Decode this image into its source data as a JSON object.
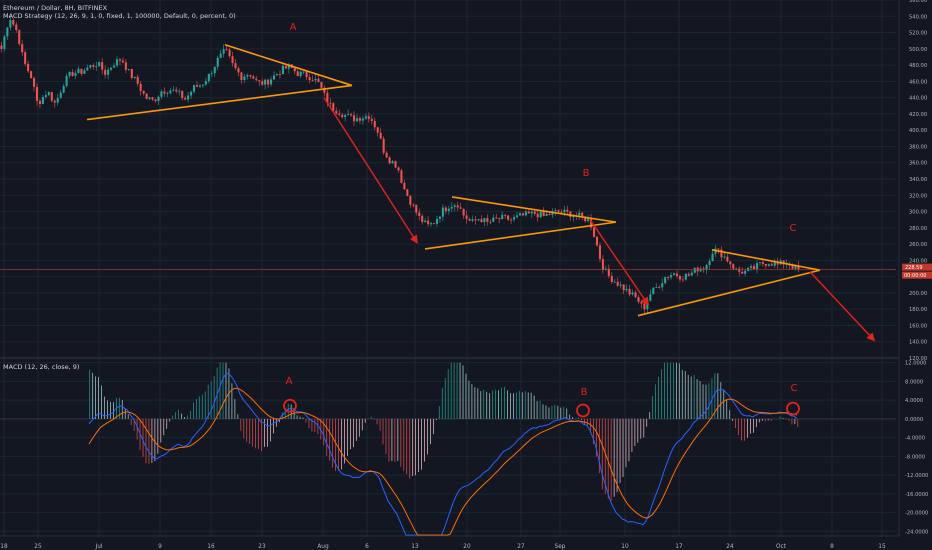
{
  "header": {
    "symbol_line": "Ethereum / Dollar, 8H, BITFINEX",
    "strategy_line": "MACD Strategy (12, 26, 9, 1, 0, fixed, 1, 100000, Default, 0, percent, 0)",
    "macd_line": "MACD (12, 26, close, 9)"
  },
  "colors": {
    "background": "#131722",
    "bull": "#26a69a",
    "bear": "#ef5350",
    "triangle": "#ff9800",
    "arrow": "#e0241c",
    "macd_line": "#2962ff",
    "signal_line": "#ff6d00",
    "current_price_line": "#c0392b"
  },
  "annotations": {
    "price_labels": [
      "A",
      "B",
      "C"
    ],
    "macd_labels": [
      "A",
      "B",
      "C"
    ]
  },
  "price_badges": [
    "228.59",
    "00:00:00"
  ],
  "chart_data": [
    {
      "type": "candlestick",
      "title": "Ethereum / Dollar, 8H, BITFINEX",
      "x_ticks": [
        "18",
        "25",
        "Jul",
        "9",
        "16",
        "23",
        "Aug",
        "6",
        "13",
        "20",
        "27",
        "Sep",
        "10",
        "17",
        "24",
        "Oct",
        "8",
        "15"
      ],
      "y_ticks": [
        560,
        540,
        520,
        500,
        480,
        460,
        440,
        420,
        400,
        380,
        360,
        340,
        320,
        300,
        280,
        260,
        240,
        220,
        200,
        180,
        160,
        140,
        120
      ],
      "ylim": [
        120,
        560
      ],
      "current_price": 228.59,
      "path_anchors": [
        [
          0,
          500
        ],
        [
          8,
          540
        ],
        [
          16,
          520
        ],
        [
          22,
          485
        ],
        [
          30,
          465
        ],
        [
          36,
          432
        ],
        [
          46,
          448
        ],
        [
          54,
          432
        ],
        [
          62,
          458
        ],
        [
          70,
          470
        ],
        [
          80,
          472
        ],
        [
          88,
          478
        ],
        [
          96,
          482
        ],
        [
          104,
          470
        ],
        [
          112,
          482
        ],
        [
          120,
          488
        ],
        [
          128,
          470
        ],
        [
          136,
          458
        ],
        [
          144,
          440
        ],
        [
          152,
          436
        ],
        [
          160,
          448
        ],
        [
          168,
          450
        ],
        [
          176,
          446
        ],
        [
          184,
          438
        ],
        [
          192,
          452
        ],
        [
          200,
          456
        ],
        [
          208,
          468
        ],
        [
          216,
          486
        ],
        [
          224,
          498
        ],
        [
          232,
          478
        ],
        [
          240,
          466
        ],
        [
          248,
          470
        ],
        [
          256,
          458
        ],
        [
          264,
          458
        ],
        [
          272,
          466
        ],
        [
          280,
          474
        ],
        [
          288,
          478
        ],
        [
          296,
          470
        ],
        [
          304,
          468
        ],
        [
          312,
          464
        ],
        [
          318,
          456
        ],
        [
          324,
          440
        ],
        [
          330,
          428
        ],
        [
          336,
          424
        ],
        [
          344,
          418
        ],
        [
          352,
          414
        ],
        [
          360,
          416
        ],
        [
          368,
          418
        ],
        [
          376,
          400
        ],
        [
          382,
          376
        ],
        [
          388,
          364
        ],
        [
          396,
          356
        ],
        [
          402,
          330
        ],
        [
          410,
          310
        ],
        [
          418,
          292
        ],
        [
          426,
          282
        ],
        [
          432,
          286
        ],
        [
          440,
          300
        ],
        [
          448,
          308
        ],
        [
          456,
          310
        ],
        [
          462,
          296
        ],
        [
          470,
          286
        ],
        [
          478,
          292
        ],
        [
          486,
          286
        ],
        [
          494,
          290
        ],
        [
          502,
          292
        ],
        [
          510,
          290
        ],
        [
          518,
          294
        ],
        [
          526,
          296
        ],
        [
          534,
          298
        ],
        [
          542,
          294
        ],
        [
          550,
          298
        ],
        [
          558,
          300
        ],
        [
          566,
          298
        ],
        [
          574,
          296
        ],
        [
          582,
          292
        ],
        [
          588,
          290
        ],
        [
          594,
          266
        ],
        [
          600,
          236
        ],
        [
          606,
          222
        ],
        [
          612,
          216
        ],
        [
          620,
          208
        ],
        [
          628,
          200
        ],
        [
          636,
          192
        ],
        [
          642,
          180
        ],
        [
          648,
          198
        ],
        [
          656,
          208
        ],
        [
          664,
          220
        ],
        [
          672,
          224
        ],
        [
          680,
          220
        ],
        [
          688,
          222
        ],
        [
          696,
          230
        ],
        [
          704,
          232
        ],
        [
          712,
          254
        ],
        [
          720,
          248
        ],
        [
          728,
          238
        ],
        [
          736,
          226
        ],
        [
          744,
          226
        ],
        [
          752,
          230
        ],
        [
          760,
          236
        ],
        [
          768,
          238
        ],
        [
          776,
          234
        ],
        [
          784,
          238
        ],
        [
          790,
          234
        ],
        [
          796,
          228
        ],
        [
          800,
          228
        ]
      ],
      "patterns": [
        {
          "label": "A",
          "apex_price": 455,
          "upper_start": 505,
          "lower_start": 413
        },
        {
          "label": "B",
          "apex_price": 287,
          "upper_start": 318,
          "lower_start": 254
        },
        {
          "label": "C",
          "apex_price": 228,
          "upper_start": 253,
          "lower_start": 172
        }
      ]
    },
    {
      "type": "line",
      "title": "MACD (12, 26, close, 9)",
      "series": [
        "MACD",
        "Signal",
        "Histogram"
      ],
      "y_ticks": [
        12,
        8,
        4,
        0,
        -4,
        -8,
        -12,
        -16,
        -20,
        -24
      ],
      "y_tick_labels": [
        "12.0000",
        "8.0000",
        "4.0000",
        "0.0000",
        "-4.0000",
        "-8.0000",
        "-12.0000",
        "-16.0000",
        "-20.0000",
        "-24.0000"
      ],
      "ylim": [
        -25,
        13
      ]
    }
  ]
}
